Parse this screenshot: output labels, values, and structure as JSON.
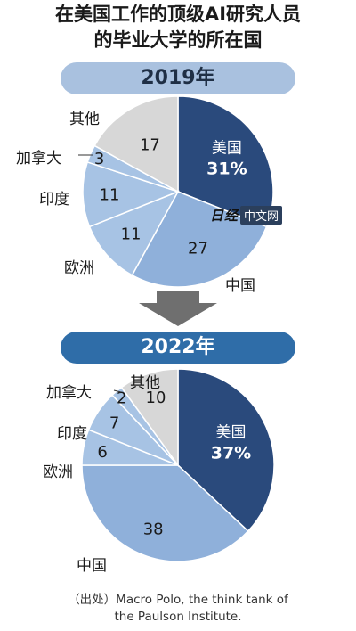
{
  "title": "在美国工作的顶级AI研究人员\n的毕业大学的所在国",
  "watermark": {
    "logo_text": "日经",
    "box_text": "中文网"
  },
  "source": "（出处）Macro Polo, the think tank of\nthe Paulson Institute.",
  "colors": {
    "usa": "#2a4a7c",
    "china": "#8fb0da",
    "others": "#a7c3e4",
    "other": "#d7d7d7"
  },
  "chart_data": [
    {
      "type": "pie",
      "title": "2019年",
      "slices": [
        {
          "label": "美国",
          "value": 31,
          "display": "31%",
          "color": "#2a4a7c"
        },
        {
          "label": "中国",
          "value": 27,
          "display": "27",
          "color": "#8fb0da"
        },
        {
          "label": "欧洲",
          "value": 11,
          "display": "11",
          "color": "#a7c3e4"
        },
        {
          "label": "印度",
          "value": 11,
          "display": "11",
          "color": "#a7c3e4"
        },
        {
          "label": "加拿大",
          "value": 3,
          "display": "3",
          "color": "#a7c3e4"
        },
        {
          "label": "其他",
          "value": 17,
          "display": "17",
          "color": "#d7d7d7"
        }
      ]
    },
    {
      "type": "pie",
      "title": "2022年",
      "slices": [
        {
          "label": "美国",
          "value": 37,
          "display": "37%",
          "color": "#2a4a7c"
        },
        {
          "label": "中国",
          "value": 38,
          "display": "38",
          "color": "#8fb0da"
        },
        {
          "label": "欧洲",
          "value": 6,
          "display": "6",
          "color": "#a7c3e4"
        },
        {
          "label": "印度",
          "value": 7,
          "display": "7",
          "color": "#a7c3e4"
        },
        {
          "label": "加拿大",
          "value": 2,
          "display": "2",
          "color": "#a7c3e4"
        },
        {
          "label": "其他",
          "value": 10,
          "display": "10",
          "color": "#d7d7d7"
        }
      ]
    }
  ]
}
